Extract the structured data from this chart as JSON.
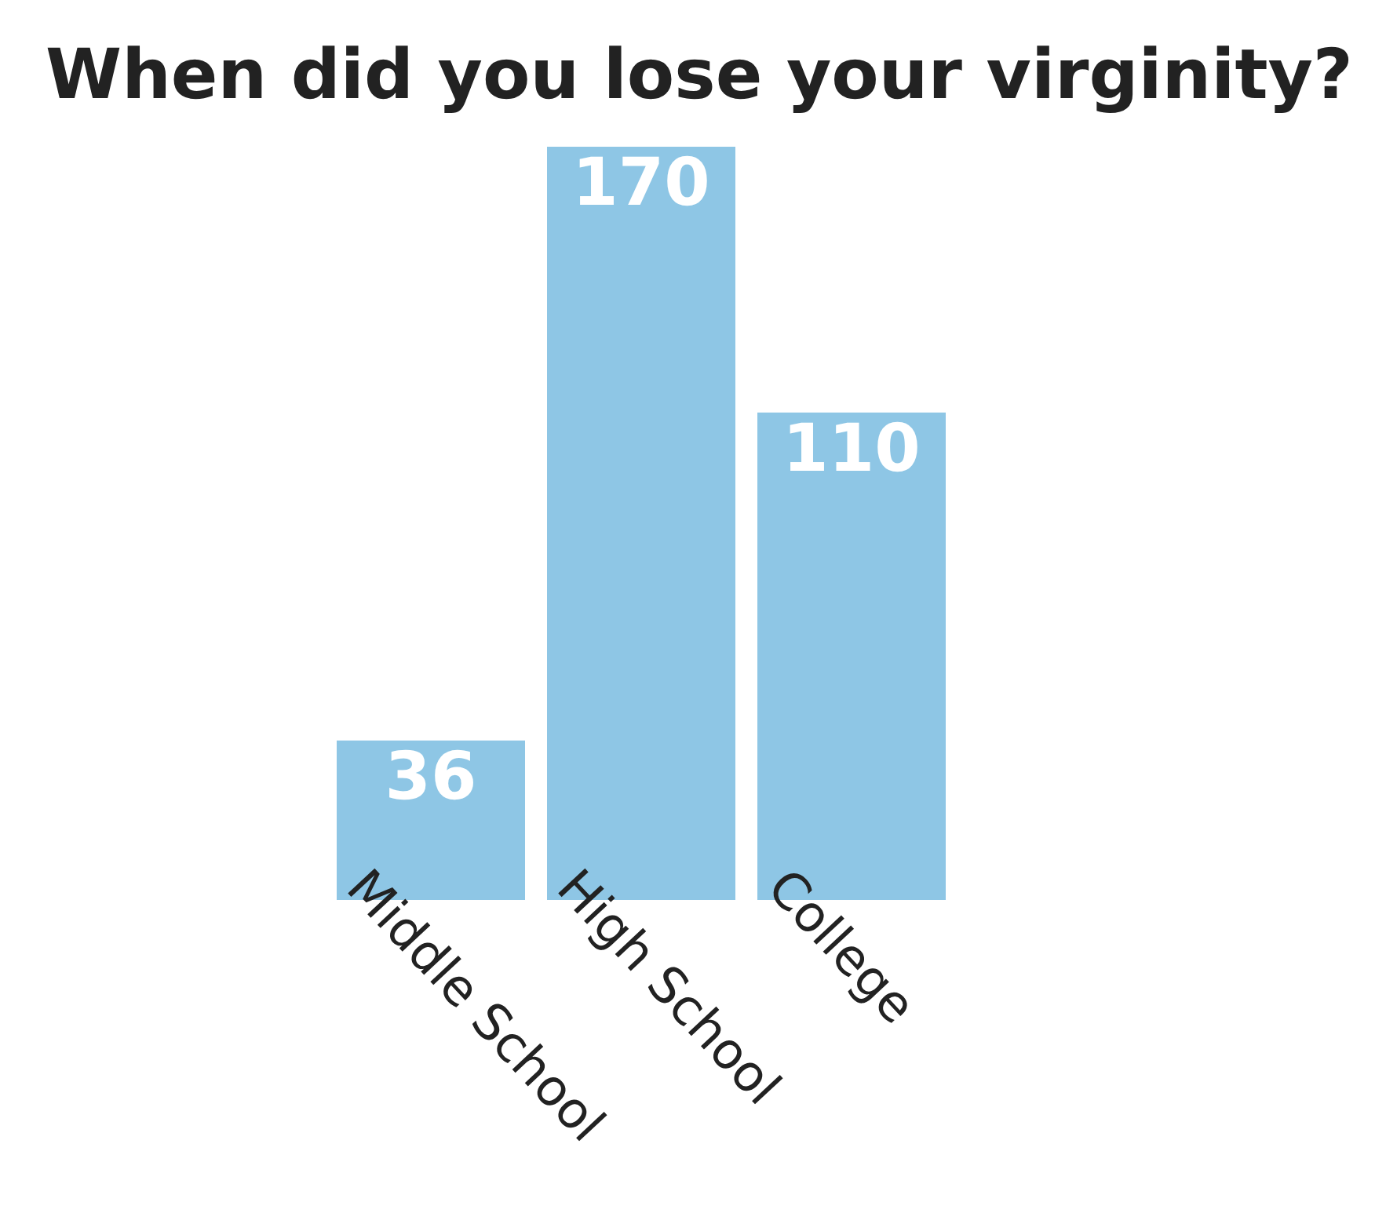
{
  "chart_data": {
    "type": "bar",
    "title": "When did you lose your virginity?",
    "categories": [
      "Middle School",
      "High School",
      "College"
    ],
    "values": [
      36,
      170,
      110
    ],
    "color": "#8ec6e5",
    "data_labels": true,
    "grid": false
  }
}
